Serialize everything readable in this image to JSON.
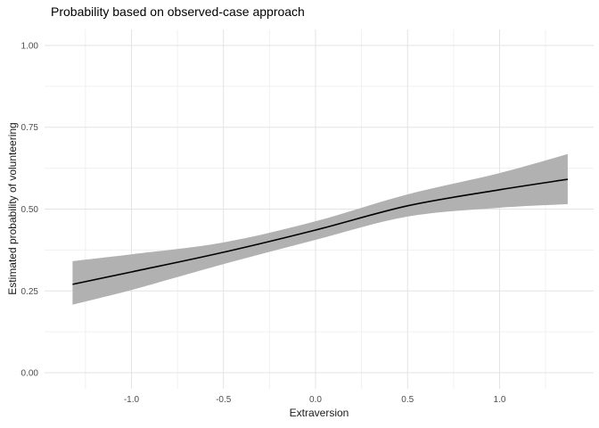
{
  "chart_data": {
    "type": "line",
    "title": "Probability based on observed-case approach",
    "xlabel": "Extraversion",
    "ylabel": "Estimated probability of volunteering",
    "legend": "none",
    "grid": true,
    "xlim": [
      -1.472,
      1.511
    ],
    "ylim": [
      -0.049,
      1.049
    ],
    "x_ticks": [
      -1.0,
      -0.5,
      0.0,
      0.5,
      1.0
    ],
    "x_tick_labels": [
      "-1.0",
      "-0.5",
      "0.0",
      "0.5",
      "1.0"
    ],
    "x_minor": [
      -1.25,
      -0.75,
      -0.25,
      0.25,
      0.75,
      1.25
    ],
    "y_ticks": [
      0.0,
      0.25,
      0.5,
      0.75,
      1.0
    ],
    "y_tick_labels": [
      "0.00",
      "0.25",
      "0.50",
      "0.75",
      "1.00"
    ],
    "y_minor": [
      0.125,
      0.375,
      0.625,
      0.875
    ],
    "x": [
      -1.32,
      -1.0,
      -0.5,
      0.0,
      0.5,
      1.0,
      1.37
    ],
    "fit": [
      0.27,
      0.308,
      0.368,
      0.436,
      0.51,
      0.559,
      0.591
    ],
    "ci_lower": [
      0.208,
      0.253,
      0.332,
      0.406,
      0.477,
      0.504,
      0.515
    ],
    "ci_upper": [
      0.341,
      0.362,
      0.398,
      0.463,
      0.545,
      0.61,
      0.668
    ],
    "colors": {
      "background": "#ffffff",
      "band_fill": "#b1b1b1",
      "line": "#000000",
      "grid_major": "#e3e3e3",
      "grid_minor": "#f0f0f0",
      "tick_text": "#4d4d4d",
      "title_text": "#000000"
    }
  }
}
